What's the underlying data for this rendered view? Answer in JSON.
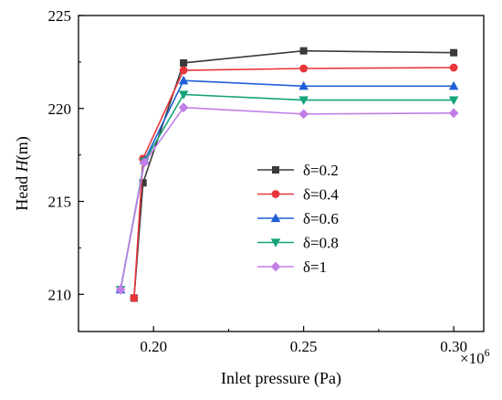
{
  "chart_data": {
    "type": "line",
    "xlabel": "Inlet pressure (Pa)",
    "ylabel_prefix": "Head ",
    "ylabel_var": "H",
    "ylabel_suffix": "(m)",
    "x_exponent_label": "×10",
    "x_exponent_power": "6",
    "xlim": [
      0.175,
      0.31
    ],
    "ylim": [
      208,
      225
    ],
    "x_ticks": [
      0.2,
      0.25,
      0.3
    ],
    "x_tick_labels": [
      "0.20",
      "0.25",
      "0.30"
    ],
    "y_ticks": [
      210,
      215,
      220,
      225
    ],
    "y_tick_labels": [
      "210",
      "215",
      "220",
      "225"
    ],
    "grid": false,
    "legend_position": "center-right",
    "series": [
      {
        "name": "δ=0.2",
        "color": "#3a3a3a",
        "marker": "square",
        "x": [
          0.1935,
          0.1965,
          0.21,
          0.25,
          0.3
        ],
        "y": [
          209.8,
          216.0,
          222.45,
          223.1,
          223.0
        ]
      },
      {
        "name": "δ=0.4",
        "color": "#e8363a",
        "marker": "circle",
        "x": [
          0.1935,
          0.1965,
          0.21,
          0.25,
          0.3
        ],
        "y": [
          209.8,
          217.3,
          222.05,
          222.15,
          222.2
        ]
      },
      {
        "name": "δ=0.6",
        "color": "#1f5fd6",
        "marker": "triangle-up",
        "x": [
          0.189,
          0.197,
          0.21,
          0.25,
          0.3
        ],
        "y": [
          210.25,
          217.2,
          221.5,
          221.2,
          221.2
        ]
      },
      {
        "name": "δ=0.8",
        "color": "#15a37a",
        "marker": "triangle-down",
        "x": [
          0.189,
          0.197,
          0.21,
          0.25,
          0.3
        ],
        "y": [
          210.25,
          217.15,
          220.75,
          220.45,
          220.45
        ]
      },
      {
        "name": "δ=1",
        "color": "#c27ee8",
        "marker": "diamond",
        "x": [
          0.189,
          0.197,
          0.21,
          0.25,
          0.3
        ],
        "y": [
          210.25,
          217.1,
          220.05,
          219.7,
          219.75
        ]
      }
    ]
  }
}
